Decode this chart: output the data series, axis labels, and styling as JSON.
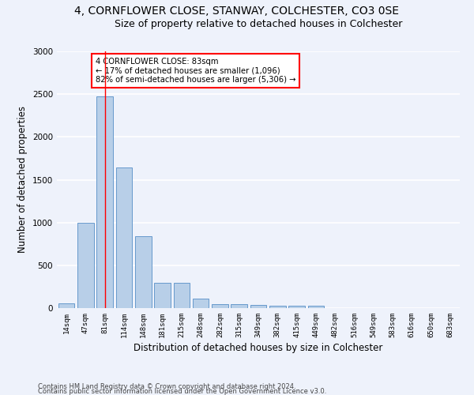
{
  "title1": "4, CORNFLOWER CLOSE, STANWAY, COLCHESTER, CO3 0SE",
  "title2": "Size of property relative to detached houses in Colchester",
  "xlabel": "Distribution of detached houses by size in Colchester",
  "ylabel": "Number of detached properties",
  "categories": [
    "14sqm",
    "47sqm",
    "81sqm",
    "114sqm",
    "148sqm",
    "181sqm",
    "215sqm",
    "248sqm",
    "282sqm",
    "315sqm",
    "349sqm",
    "382sqm",
    "415sqm",
    "449sqm",
    "482sqm",
    "516sqm",
    "549sqm",
    "583sqm",
    "616sqm",
    "650sqm",
    "683sqm"
  ],
  "values": [
    55,
    1000,
    2470,
    1640,
    840,
    295,
    295,
    115,
    50,
    45,
    35,
    25,
    30,
    25,
    0,
    0,
    0,
    0,
    0,
    0,
    0
  ],
  "bar_color": "#b8cfe8",
  "bar_edge_color": "#6699cc",
  "red_line_x": 2,
  "annotation_text": "4 CORNFLOWER CLOSE: 83sqm\n← 17% of detached houses are smaller (1,096)\n82% of semi-detached houses are larger (5,306) →",
  "annotation_box_color": "white",
  "annotation_box_edge_color": "red",
  "footer1": "Contains HM Land Registry data © Crown copyright and database right 2024.",
  "footer2": "Contains public sector information licensed under the Open Government Licence v3.0.",
  "ylim": [
    0,
    3000
  ],
  "yticks": [
    0,
    500,
    1000,
    1500,
    2000,
    2500,
    3000
  ],
  "background_color": "#eef2fb",
  "grid_color": "white",
  "title1_fontsize": 10,
  "title2_fontsize": 9,
  "xlabel_fontsize": 8.5,
  "ylabel_fontsize": 8.5
}
